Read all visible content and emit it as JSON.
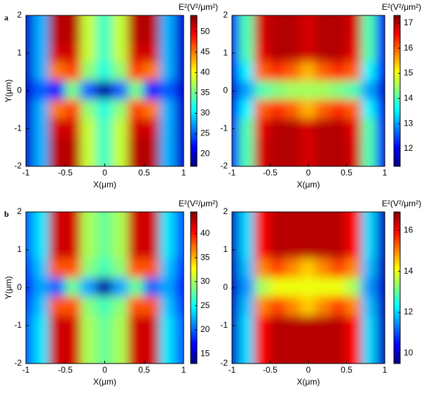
{
  "chart_data": [
    {
      "type": "heatmap",
      "panel_label": "a",
      "title": "E²(V²/μm²)",
      "xlabel": "X(μm)",
      "ylabel": "Y(μm)",
      "colormap": "jet",
      "x": [
        -1,
        -0.8,
        -0.6,
        -0.4,
        -0.2,
        0,
        0.2,
        0.4,
        0.6,
        0.8,
        1
      ],
      "y": [
        2,
        1.5,
        1,
        0.5,
        0,
        -0.5,
        -1,
        -1.5,
        -2
      ],
      "z": [
        [
          20,
          28,
          52,
          52,
          38,
          33,
          38,
          52,
          52,
          28,
          20
        ],
        [
          20,
          28,
          52,
          52,
          38,
          33,
          38,
          52,
          52,
          28,
          20
        ],
        [
          20,
          28,
          51,
          51,
          38,
          33,
          38,
          51,
          51,
          28,
          20
        ],
        [
          20,
          28,
          45,
          47,
          36,
          32,
          36,
          47,
          45,
          28,
          20
        ],
        [
          20,
          25,
          22,
          35,
          25,
          18,
          25,
          35,
          22,
          25,
          20
        ],
        [
          20,
          28,
          45,
          47,
          36,
          32,
          36,
          47,
          45,
          28,
          20
        ],
        [
          20,
          28,
          51,
          51,
          38,
          33,
          38,
          51,
          51,
          28,
          20
        ],
        [
          20,
          28,
          52,
          52,
          38,
          33,
          38,
          52,
          52,
          28,
          20
        ],
        [
          20,
          28,
          52,
          52,
          38,
          33,
          38,
          52,
          52,
          28,
          20
        ]
      ],
      "xlim": [
        -1,
        1
      ],
      "ylim": [
        -2,
        2
      ],
      "xticks": [
        -1,
        -0.5,
        0,
        0.5,
        1
      ],
      "yticks": [
        -2,
        -1,
        0,
        1,
        2
      ],
      "clim": [
        17,
        54
      ],
      "cticks": [
        20,
        25,
        30,
        35,
        40,
        45,
        50
      ]
    },
    {
      "type": "heatmap",
      "title": "E²(V²/μm²)",
      "xlabel": "X(μm)",
      "colormap": "jet",
      "x": [
        -1,
        -0.8,
        -0.6,
        -0.4,
        -0.2,
        0,
        0.2,
        0.4,
        0.6,
        0.8,
        1
      ],
      "y": [
        2,
        1.5,
        1,
        0.5,
        0,
        -0.5,
        -1,
        -1.5,
        -2
      ],
      "z": [
        [
          12,
          14,
          16.8,
          17,
          17,
          16.8,
          17,
          17,
          16.8,
          14,
          12
        ],
        [
          12,
          14,
          16.8,
          17,
          17,
          16.8,
          17,
          17,
          16.8,
          14,
          12
        ],
        [
          12,
          14,
          16.7,
          17,
          17,
          16.8,
          17,
          17,
          16.7,
          14,
          12
        ],
        [
          12,
          13.5,
          16,
          16.3,
          16,
          15.5,
          16,
          16.3,
          16,
          13.5,
          12
        ],
        [
          11.8,
          13,
          14,
          14.3,
          14.5,
          14.5,
          14.5,
          14.3,
          14,
          13,
          11.8
        ],
        [
          12,
          13.5,
          16,
          16.3,
          16,
          15.5,
          16,
          16.3,
          16,
          13.5,
          12
        ],
        [
          12,
          14,
          16.7,
          17,
          17,
          16.8,
          17,
          17,
          16.7,
          14,
          12
        ],
        [
          12,
          14,
          16.8,
          17,
          17,
          16.8,
          17,
          17,
          16.8,
          14,
          12
        ],
        [
          12,
          14,
          16.8,
          17,
          17,
          16.8,
          17,
          17,
          16.8,
          14,
          12
        ]
      ],
      "xlim": [
        -1,
        1
      ],
      "ylim": [
        -2,
        2
      ],
      "xticks": [
        -1,
        -0.5,
        0,
        0.5,
        1
      ],
      "yticks": [
        -2,
        -1,
        0,
        1,
        2
      ],
      "clim": [
        11.3,
        17.3
      ],
      "cticks": [
        12,
        13,
        14,
        15,
        16,
        17
      ]
    },
    {
      "type": "heatmap",
      "panel_label": "b",
      "title": "E²(V²/μm²)",
      "xlabel": "X(μm)",
      "ylabel": "Y(μm)",
      "colormap": "jet",
      "x": [
        -1,
        -0.8,
        -0.6,
        -0.4,
        -0.2,
        0,
        0.2,
        0.4,
        0.6,
        0.8,
        1
      ],
      "y": [
        2,
        1.5,
        1,
        0.5,
        0,
        -0.5,
        -1,
        -1.5,
        -2
      ],
      "z": [
        [
          20,
          24,
          42,
          42,
          30,
          28,
          30,
          42,
          42,
          24,
          20
        ],
        [
          20,
          24,
          42,
          42,
          30,
          28,
          30,
          42,
          42,
          24,
          20
        ],
        [
          20,
          24,
          42,
          42,
          30,
          28,
          30,
          42,
          42,
          24,
          20
        ],
        [
          19,
          23,
          38,
          38,
          29,
          27,
          29,
          38,
          38,
          23,
          19
        ],
        [
          18,
          22,
          20,
          28,
          22,
          14,
          22,
          28,
          20,
          22,
          18
        ],
        [
          19,
          23,
          38,
          38,
          29,
          27,
          29,
          38,
          38,
          23,
          19
        ],
        [
          20,
          24,
          42,
          42,
          30,
          28,
          30,
          42,
          42,
          24,
          20
        ],
        [
          20,
          24,
          42,
          42,
          30,
          28,
          30,
          42,
          42,
          24,
          20
        ],
        [
          20,
          24,
          42,
          42,
          30,
          28,
          30,
          42,
          42,
          24,
          20
        ]
      ],
      "xlim": [
        -1,
        1
      ],
      "ylim": [
        -2,
        2
      ],
      "xticks": [
        -1,
        -0.5,
        0,
        0.5,
        1
      ],
      "yticks": [
        -2,
        -1,
        0,
        1,
        2
      ],
      "clim": [
        13,
        44.5
      ],
      "cticks": [
        15,
        20,
        25,
        30,
        35,
        40
      ]
    },
    {
      "type": "heatmap",
      "title": "E²(V²/μm²)",
      "xlabel": "X(μm)",
      "colormap": "jet",
      "x": [
        -1,
        -0.8,
        -0.6,
        -0.4,
        -0.2,
        0,
        0.2,
        0.4,
        0.6,
        0.8,
        1
      ],
      "y": [
        2,
        1.5,
        1,
        0.5,
        0,
        -0.5,
        -1,
        -1.5,
        -2
      ],
      "z": [
        [
          10,
          12,
          16,
          16.5,
          16.5,
          16.5,
          16.5,
          16.5,
          16,
          12,
          10
        ],
        [
          10,
          12,
          16,
          16.5,
          16.5,
          16.5,
          16.5,
          16.5,
          16,
          12,
          10
        ],
        [
          10,
          12,
          16,
          16.5,
          16.5,
          16.5,
          16.5,
          16.5,
          16,
          12,
          10
        ],
        [
          10,
          11.8,
          15,
          15.5,
          15,
          14.5,
          15,
          15.5,
          15,
          11.8,
          10
        ],
        [
          10,
          11.5,
          13.5,
          14,
          14,
          14,
          14,
          14,
          13.5,
          11.5,
          10
        ],
        [
          10,
          11.8,
          15,
          15.5,
          15,
          14.5,
          15,
          15.5,
          15,
          11.8,
          10
        ],
        [
          10,
          12,
          16,
          16.5,
          16.5,
          16.5,
          16.5,
          16.5,
          16,
          12,
          10
        ],
        [
          10,
          12,
          16,
          16.5,
          16.5,
          16.5,
          16.5,
          16.5,
          16,
          12,
          10
        ],
        [
          10,
          12,
          16,
          16.5,
          16.5,
          16.5,
          16.5,
          16.5,
          16,
          12,
          10
        ]
      ],
      "xlim": [
        -1,
        1
      ],
      "ylim": [
        -2,
        2
      ],
      "xticks": [
        -1,
        -0.5,
        0,
        0.5,
        1
      ],
      "yticks": [
        -2,
        -1,
        0,
        1,
        2
      ],
      "clim": [
        9.5,
        16.9
      ],
      "cticks": [
        10,
        12,
        14,
        16
      ]
    }
  ]
}
